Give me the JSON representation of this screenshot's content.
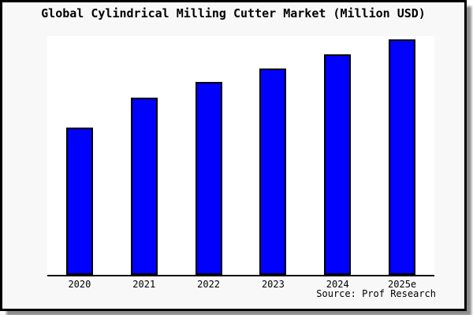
{
  "page": {
    "background": "#ffffff"
  },
  "chart": {
    "title": "Global Cylindrical Milling Cutter Market (Million USD)",
    "source": "Source: Prof Research",
    "colors": {
      "bar_fill": "#0000ff",
      "bar_border": "#000000",
      "frame_border": "#000000",
      "frame_background": "#f8f8f8",
      "plot_background": "#ffffff",
      "axis_line": "#000000",
      "text": "#000000"
    }
  },
  "chart_data": {
    "type": "bar",
    "title": "Global Cylindrical Milling Cutter Market (Million USD)",
    "categories": [
      "2020",
      "2021",
      "2022",
      "2023",
      "2024",
      "2025e"
    ],
    "values_percent_of_plot_height": [
      61.6,
      74.4,
      80.7,
      86.6,
      92.5,
      98.7
    ],
    "y_axis": "unlabeled - no ticks, no gridlines, no value labels shown",
    "xlabel": "",
    "ylabel": "",
    "ylim": [
      0,
      100
    ],
    "grid": false,
    "legend": "none",
    "annotations": [
      "Source: Prof Research"
    ]
  }
}
